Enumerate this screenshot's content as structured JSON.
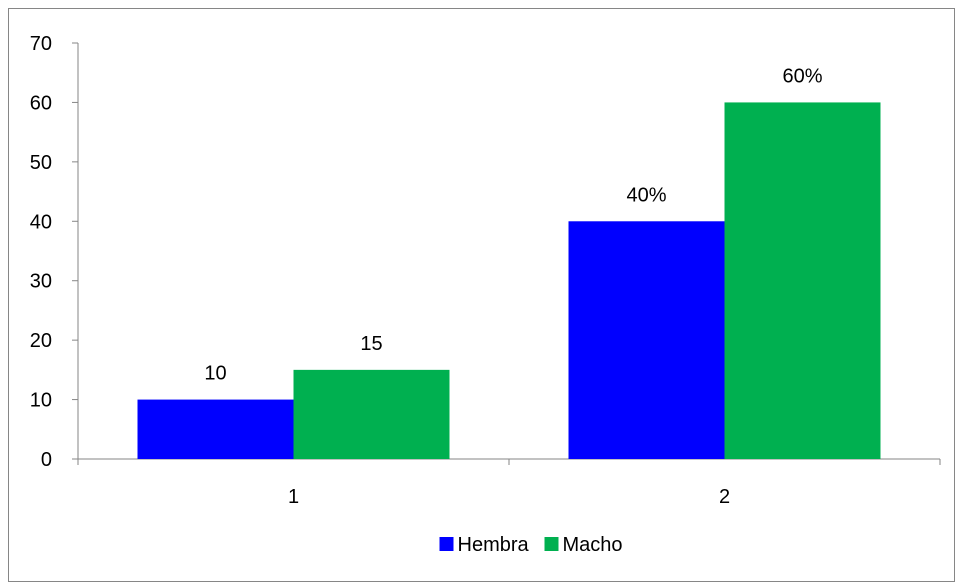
{
  "chart_data": {
    "type": "bar",
    "categories": [
      "1",
      "2"
    ],
    "series": [
      {
        "name": "Hembra",
        "color": "#0000FF",
        "values": [
          10,
          40
        ],
        "labels": [
          "10",
          "40%"
        ]
      },
      {
        "name": "Macho",
        "color": "#00B050",
        "values": [
          15,
          60
        ],
        "labels": [
          "15",
          "60%"
        ]
      }
    ],
    "title": "",
    "xlabel": "",
    "ylabel": "",
    "ylim": [
      0,
      70
    ],
    "yticks": [
      0,
      10,
      20,
      30,
      40,
      50,
      60,
      70
    ],
    "grid": false,
    "legend_position": "bottom"
  }
}
